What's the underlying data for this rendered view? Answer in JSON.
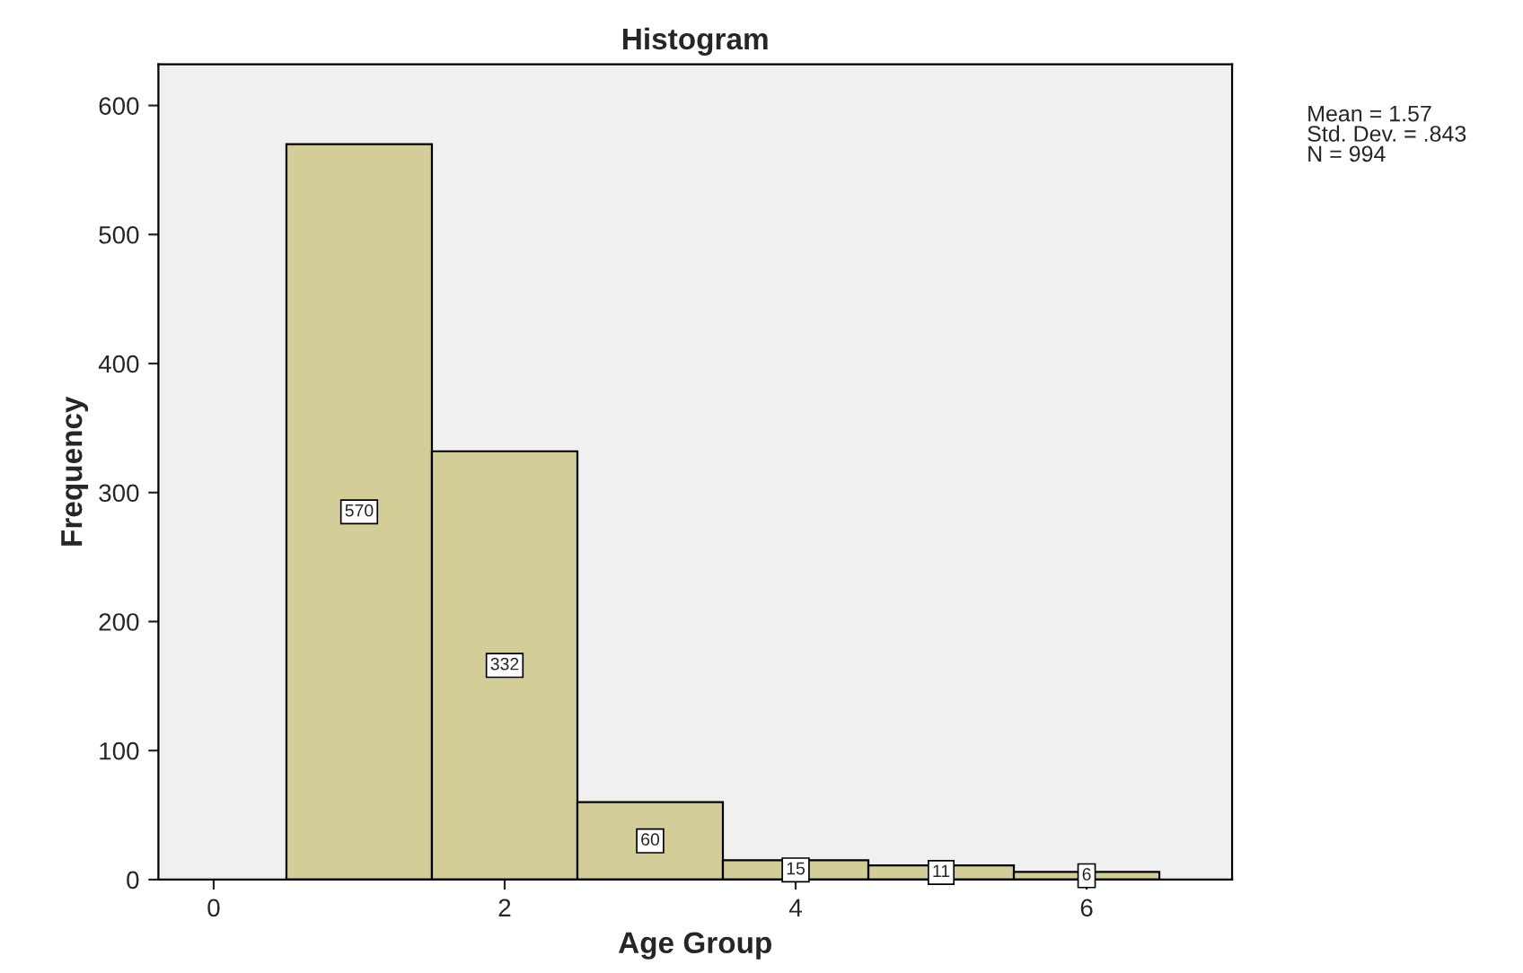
{
  "chart_data": {
    "type": "histogram",
    "title": "Histogram",
    "xlabel": "Age Group",
    "ylabel": "Frequency",
    "bins": [
      0.5,
      1.5,
      2.5,
      3.5,
      4.5,
      5.5,
      6.5
    ],
    "values": [
      570,
      332,
      60,
      15,
      11,
      6
    ],
    "color": "#d3ce97",
    "data_labels": true,
    "xlim": [
      -0.38,
      7.0
    ],
    "xticks": [
      0,
      2,
      4,
      6
    ],
    "ylim": [
      0,
      632
    ],
    "yticks": [
      0,
      100,
      200,
      300,
      400,
      500,
      600
    ],
    "grid": false,
    "annotations": [
      "Mean = 1.57\nStd. Dev. = .843\nN = 994"
    ]
  }
}
